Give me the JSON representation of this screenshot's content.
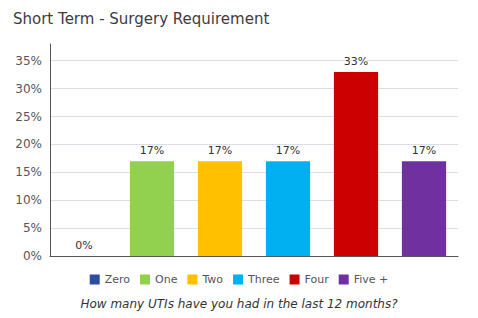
{
  "chart_data": {
    "type": "bar",
    "title": "Short Term - Surgery Requirement",
    "xlabel": "How many UTIs have you had in the last 12 months?",
    "categories": [
      "Zero",
      "One",
      "Two",
      "Three",
      "Four",
      "Five +"
    ],
    "values": [
      0,
      17,
      17,
      17,
      33,
      17
    ],
    "value_labels": [
      "0%",
      "17%",
      "17%",
      "17%",
      "33%",
      "17%"
    ],
    "colors": [
      "#2E4DA0",
      "#92D050",
      "#FFC000",
      "#00B0F0",
      "#CC0000",
      "#7030A0"
    ],
    "ylim": [
      0,
      38
    ],
    "yticks": [
      {
        "value": 0,
        "label": "0%"
      },
      {
        "value": 5,
        "label": "5%"
      },
      {
        "value": 10,
        "label": "10%"
      },
      {
        "value": 15,
        "label": "15%"
      },
      {
        "value": 20,
        "label": "20%"
      },
      {
        "value": 25,
        "label": "25%"
      },
      {
        "value": 30,
        "label": "30%"
      },
      {
        "value": 35,
        "label": "35%"
      }
    ],
    "grid": true,
    "legend": "bottom",
    "data_labels": true,
    "tick_labels": "y"
  }
}
